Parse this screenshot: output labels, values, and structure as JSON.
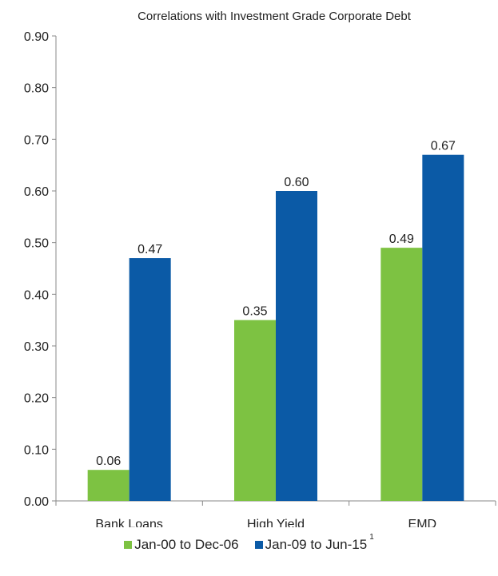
{
  "chart_data": {
    "type": "bar",
    "title": "Correlations with Investment Grade Corporate Debt",
    "categories": [
      "Bank Loans",
      "High Yield",
      "EMD"
    ],
    "series": [
      {
        "name": "Jan-00 to Dec-06",
        "values": [
          0.06,
          0.35,
          0.49
        ],
        "labels": [
          "0.06",
          "0.35",
          "0.49"
        ],
        "color": "#7dc242"
      },
      {
        "name": "Jan-09 to Jun-15",
        "values": [
          0.47,
          0.6,
          0.67
        ],
        "labels": [
          "0.47",
          "0.60",
          "0.67"
        ],
        "color": "#0b5aa6"
      }
    ],
    "ylim": [
      0,
      0.9
    ],
    "yticks": [
      "0.00",
      "0.10",
      "0.20",
      "0.30",
      "0.40",
      "0.50",
      "0.60",
      "0.70",
      "0.80",
      "0.90"
    ],
    "grid": false,
    "legend_position": "bottom",
    "legend_footnote": "1"
  }
}
